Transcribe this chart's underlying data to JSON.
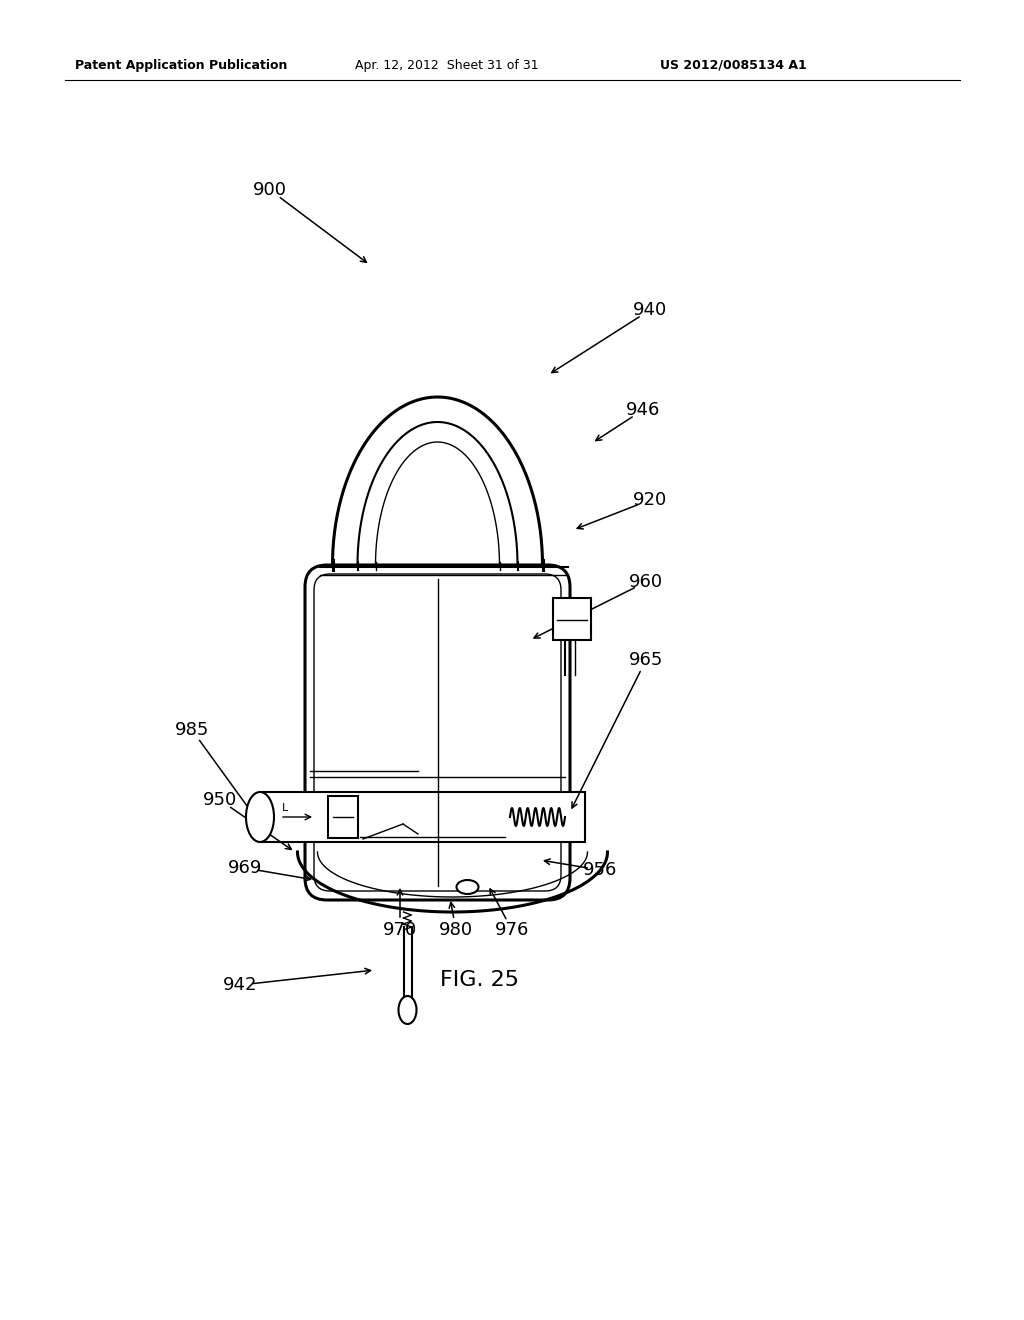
{
  "bg_color": "#ffffff",
  "line_color": "#000000",
  "header_left": "Patent Application Publication",
  "header_mid": "Apr. 12, 2012  Sheet 31 of 31",
  "header_right": "US 2012/0085134 A1",
  "fig_label": "FIG. 25"
}
